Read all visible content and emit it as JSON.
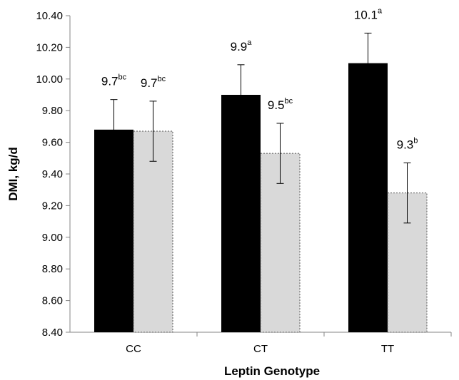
{
  "chart_data": {
    "type": "bar",
    "title": "",
    "xlabel": "Leptin Genotype",
    "ylabel": "DMI, kg/d",
    "categories": [
      "CC",
      "CT",
      "TT"
    ],
    "ylim": [
      8.4,
      10.4
    ],
    "yticks": [
      "8.40",
      "8.60",
      "8.80",
      "9.00",
      "9.20",
      "9.40",
      "9.60",
      "9.80",
      "10.00",
      "10.20",
      "10.40"
    ],
    "grid": false,
    "legend": "none",
    "series": [
      {
        "color": "#000000",
        "border": "solid",
        "values": [
          9.68,
          9.9,
          10.1
        ],
        "errors": [
          0.19,
          0.19,
          0.19
        ],
        "labels": [
          {
            "value": "9.7",
            "sup": "bc"
          },
          {
            "value": "9.9",
            "sup": "a"
          },
          {
            "value": "10.1",
            "sup": "a"
          }
        ]
      },
      {
        "color": "#d9d9d9",
        "border": "dashed",
        "values": [
          9.67,
          9.53,
          9.28
        ],
        "errors": [
          0.19,
          0.19,
          0.19
        ],
        "labels": [
          {
            "value": "9.7",
            "sup": "bc"
          },
          {
            "value": "9.5",
            "sup": "bc"
          },
          {
            "value": "9.3",
            "sup": "b"
          }
        ]
      }
    ]
  }
}
